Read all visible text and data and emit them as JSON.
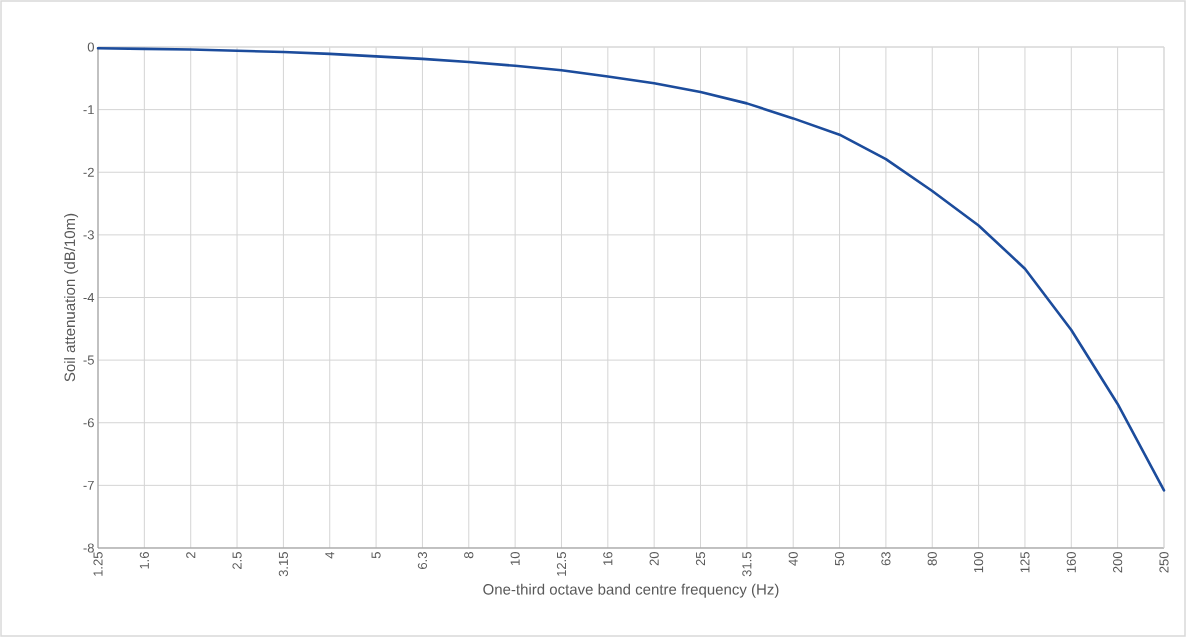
{
  "chart_data": {
    "type": "line",
    "xlabel": "One-third octave band centre frequency (Hz)",
    "ylabel": "Soil attenuation (dB/10m)",
    "categories": [
      "1.25",
      "1.6",
      "2",
      "2.5",
      "3.15",
      "4",
      "5",
      "6.3",
      "8",
      "10",
      "12.5",
      "16",
      "20",
      "25",
      "31.5",
      "40",
      "50",
      "63",
      "80",
      "100",
      "125",
      "160",
      "200",
      "250"
    ],
    "series": [
      {
        "color": "#1c4c9c",
        "values": [
          -0.02,
          -0.03,
          -0.04,
          -0.06,
          -0.08,
          -0.11,
          -0.15,
          -0.19,
          -0.24,
          -0.3,
          -0.37,
          -0.47,
          -0.58,
          -0.72,
          -0.9,
          -1.14,
          -1.4,
          -1.79,
          -2.3,
          -2.85,
          -3.54,
          -4.52,
          -5.7,
          -7.08
        ]
      }
    ],
    "ylim": [
      -8,
      0
    ],
    "yticks": [
      -8,
      -7,
      -6,
      -5,
      -4,
      -3,
      -2,
      -1,
      0
    ],
    "grid": true,
    "legend": false,
    "marker": "none",
    "line_style": "solid"
  }
}
